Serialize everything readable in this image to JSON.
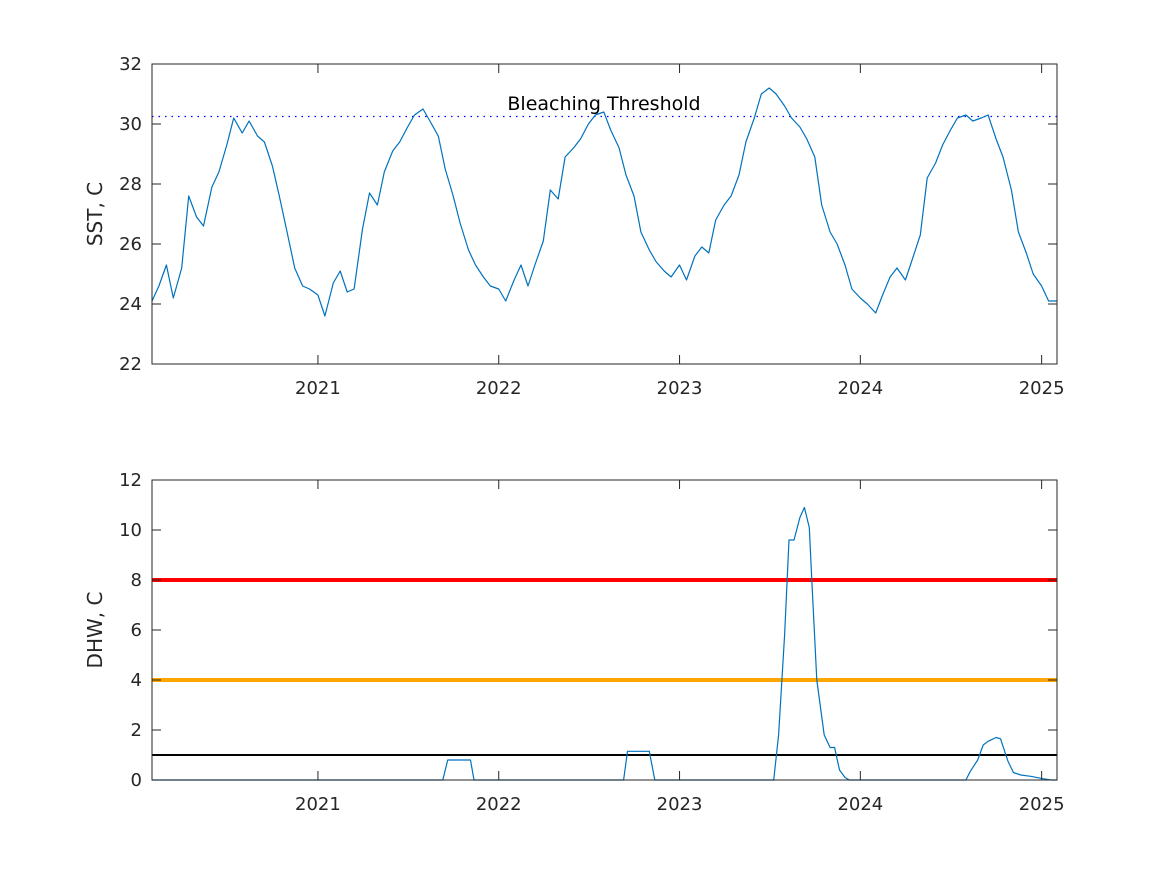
{
  "colors": {
    "series": "#0072bd",
    "threshold_dotted": "#0000ff",
    "dhw_line_red": "#ff0000",
    "dhw_line_orange": "#ffa500",
    "dhw_line_black": "#000000",
    "axes": "#262626"
  },
  "chart_data": [
    {
      "type": "line",
      "title": "",
      "xlabel": "",
      "ylabel": "SST, C",
      "xlim": [
        "2020-02-01",
        "2025-02-01"
      ],
      "ylim": [
        22,
        32
      ],
      "x_ticks": [
        "2021-01-01",
        "2022-01-01",
        "2023-01-01",
        "2024-01-01",
        "2025-01-01"
      ],
      "x_tick_labels": [
        "2021",
        "2022",
        "2023",
        "2024",
        "2025"
      ],
      "y_ticks": [
        22,
        24,
        26,
        28,
        30,
        32
      ],
      "grid": false,
      "annotation": "Bleaching Threshold",
      "threshold": 30.25,
      "series": [
        {
          "x": [
            "2020-02-01",
            "2020-02-15",
            "2020-03-01",
            "2020-03-15",
            "2020-04-01",
            "2020-04-15",
            "2020-05-01",
            "2020-05-15",
            "2020-06-01",
            "2020-06-15",
            "2020-07-01",
            "2020-07-15",
            "2020-08-01",
            "2020-08-15",
            "2020-09-01",
            "2020-09-15",
            "2020-10-01",
            "2020-10-15",
            "2020-11-01",
            "2020-11-15",
            "2020-12-01",
            "2020-12-15",
            "2021-01-01",
            "2021-01-15",
            "2021-02-01",
            "2021-02-15",
            "2021-03-01",
            "2021-03-15",
            "2021-04-01",
            "2021-04-15",
            "2021-05-01",
            "2021-05-15",
            "2021-06-01",
            "2021-06-15",
            "2021-07-01",
            "2021-07-15",
            "2021-08-01",
            "2021-08-15",
            "2021-09-01",
            "2021-09-15",
            "2021-10-01",
            "2021-10-15",
            "2021-11-01",
            "2021-11-15",
            "2021-12-01",
            "2021-12-15",
            "2022-01-01",
            "2022-01-15",
            "2022-02-01",
            "2022-02-15",
            "2022-03-01",
            "2022-03-15",
            "2022-04-01",
            "2022-04-15",
            "2022-05-01",
            "2022-05-15",
            "2022-06-01",
            "2022-06-15",
            "2022-07-01",
            "2022-07-15",
            "2022-08-01",
            "2022-08-15",
            "2022-09-01",
            "2022-09-15",
            "2022-10-01",
            "2022-10-15",
            "2022-11-01",
            "2022-11-15",
            "2022-12-01",
            "2022-12-15",
            "2023-01-01",
            "2023-01-15",
            "2023-02-01",
            "2023-02-15",
            "2023-03-01",
            "2023-03-15",
            "2023-04-01",
            "2023-04-15",
            "2023-05-01",
            "2023-05-15",
            "2023-06-01",
            "2023-06-15",
            "2023-07-01",
            "2023-07-15",
            "2023-08-01",
            "2023-08-15",
            "2023-09-01",
            "2023-09-15",
            "2023-10-01",
            "2023-10-15",
            "2023-11-01",
            "2023-11-15",
            "2023-12-01",
            "2023-12-15",
            "2024-01-01",
            "2024-01-15",
            "2024-02-01",
            "2024-02-15",
            "2024-03-01",
            "2024-03-15",
            "2024-04-01",
            "2024-04-15",
            "2024-05-01",
            "2024-05-15",
            "2024-06-01",
            "2024-06-15",
            "2024-07-01",
            "2024-07-15",
            "2024-08-01",
            "2024-08-15",
            "2024-09-01",
            "2024-09-15",
            "2024-10-01",
            "2024-10-15",
            "2024-11-01",
            "2024-11-15",
            "2024-12-01",
            "2024-12-15",
            "2025-01-01",
            "2025-01-15",
            "2025-02-01"
          ],
          "values": [
            24.1,
            24.6,
            25.3,
            24.2,
            25.2,
            27.6,
            26.9,
            26.6,
            27.9,
            28.4,
            29.3,
            30.2,
            29.7,
            30.1,
            29.6,
            29.4,
            28.6,
            27.6,
            26.3,
            25.2,
            24.6,
            24.5,
            24.3,
            23.6,
            24.7,
            25.1,
            24.4,
            24.5,
            26.5,
            27.7,
            27.3,
            28.4,
            29.1,
            29.4,
            29.9,
            30.3,
            30.5,
            30.1,
            29.6,
            28.5,
            27.6,
            26.7,
            25.8,
            25.3,
            24.9,
            24.6,
            24.5,
            24.1,
            24.8,
            25.3,
            24.6,
            25.3,
            26.1,
            27.8,
            27.5,
            28.9,
            29.2,
            29.5,
            30.0,
            30.3,
            30.4,
            29.8,
            29.2,
            28.3,
            27.6,
            26.4,
            25.8,
            25.4,
            25.1,
            24.9,
            25.3,
            24.8,
            25.6,
            25.9,
            25.7,
            26.8,
            27.3,
            27.6,
            28.3,
            29.4,
            30.2,
            31.0,
            31.2,
            31.0,
            30.6,
            30.2,
            29.9,
            29.5,
            28.9,
            27.3,
            26.4,
            26.0,
            25.3,
            24.5,
            24.2,
            24.0,
            23.7,
            24.3,
            24.9,
            25.2,
            24.8,
            25.5,
            26.3,
            28.2,
            28.7,
            29.3,
            29.8,
            30.2,
            30.3,
            30.1,
            30.2,
            30.3,
            29.5,
            28.9,
            27.8,
            26.4,
            25.7,
            25.0,
            24.6,
            24.1,
            24.1
          ]
        }
      ]
    },
    {
      "type": "line",
      "title": "",
      "xlabel": "",
      "ylabel": "DHW, C",
      "xlim": [
        "2020-02-01",
        "2025-02-01"
      ],
      "ylim": [
        0,
        12
      ],
      "x_ticks": [
        "2021-01-01",
        "2022-01-01",
        "2023-01-01",
        "2024-01-01",
        "2025-01-01"
      ],
      "x_tick_labels": [
        "2021",
        "2022",
        "2023",
        "2024",
        "2025"
      ],
      "y_ticks": [
        0,
        2,
        4,
        6,
        8,
        10,
        12
      ],
      "grid": false,
      "reference_lines": [
        {
          "value": 8,
          "color": "red"
        },
        {
          "value": 4,
          "color": "orange"
        },
        {
          "value": 1,
          "color": "black"
        }
      ],
      "series": [
        {
          "x": [
            "2020-02-01",
            "2021-09-10",
            "2021-09-20",
            "2021-11-01",
            "2021-11-05",
            "2021-11-12",
            "2022-09-10",
            "2022-09-18",
            "2022-11-01",
            "2022-11-12",
            "2023-07-10",
            "2023-07-20",
            "2023-08-01",
            "2023-08-10",
            "2023-08-20",
            "2023-09-01",
            "2023-09-10",
            "2023-09-20",
            "2023-09-25",
            "2023-10-05",
            "2023-10-20",
            "2023-11-01",
            "2023-11-10",
            "2023-11-20",
            "2023-12-01",
            "2023-12-10",
            "2024-08-01",
            "2024-08-10",
            "2024-08-25",
            "2024-09-05",
            "2024-09-15",
            "2024-10-01",
            "2024-10-10",
            "2024-10-25",
            "2024-11-05",
            "2024-11-20",
            "2024-12-10",
            "2025-01-05",
            "2025-01-20",
            "2025-02-01"
          ],
          "values": [
            0,
            0,
            0.8,
            0.8,
            0.8,
            0,
            0,
            1.15,
            1.15,
            0,
            0,
            1.8,
            5.8,
            9.6,
            9.6,
            10.5,
            10.9,
            10.1,
            8.0,
            4.0,
            1.8,
            1.3,
            1.3,
            0.4,
            0.1,
            0,
            0,
            0.35,
            0.8,
            1.4,
            1.55,
            1.7,
            1.65,
            0.75,
            0.3,
            0.2,
            0.15,
            0.05,
            0,
            0
          ]
        }
      ]
    }
  ]
}
